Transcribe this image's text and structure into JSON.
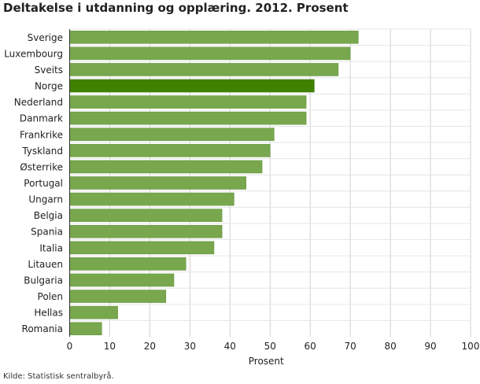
{
  "chart_data": {
    "type": "bar",
    "orientation": "horizontal",
    "title": "Deltakelse i utdanning og opplæring. 2012. Prosent",
    "xlabel": "Prosent",
    "ylabel": "",
    "xlim": [
      0,
      100
    ],
    "xticks": [
      0,
      10,
      20,
      30,
      40,
      50,
      60,
      70,
      80,
      90,
      100
    ],
    "grid": true,
    "categories": [
      "Sverige",
      "Luxembourg",
      "Sveits",
      "Norge",
      "Nederland",
      "Danmark",
      "Frankrike",
      "Tyskland",
      "Østerrike",
      "Portugal",
      "Ungarn",
      "Belgia",
      "Spania",
      "Italia",
      "Litauen",
      "Bulgaria",
      "Polen",
      "Hellas",
      "Romania"
    ],
    "values": [
      72,
      70,
      67,
      61,
      59,
      59,
      51,
      50,
      48,
      44,
      41,
      38,
      38,
      36,
      29,
      26,
      24,
      12,
      8
    ],
    "highlight": "Norge",
    "colors": {
      "bar": "#78a74e",
      "highlight": "#3f8200",
      "grid": "#d0d0d0"
    },
    "source": "Kilde: Statistisk sentralbyrå."
  }
}
